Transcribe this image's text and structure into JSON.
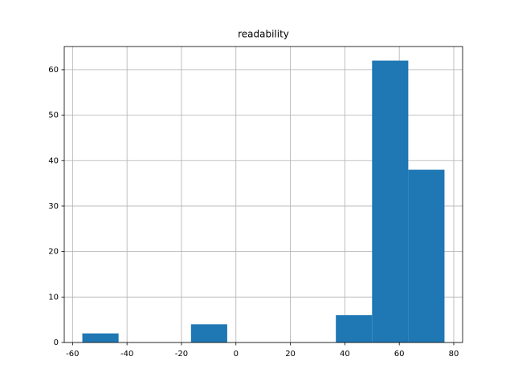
{
  "chart_data": {
    "type": "histogram",
    "title": "readability",
    "bins": [
      -56.4,
      -43.1,
      -29.8,
      -16.5,
      -3.2,
      10.1,
      23.4,
      36.7,
      50.0,
      63.3,
      76.6
    ],
    "values": [
      2,
      0,
      0,
      4,
      0,
      0,
      0,
      6,
      62,
      38
    ],
    "color": "#1f77b4",
    "xlim": [
      -63.05,
      83.25
    ],
    "xticks": [
      -60,
      -40,
      -20,
      0,
      20,
      40,
      60,
      80
    ],
    "ylim": [
      0,
      65.1
    ],
    "yticks": [
      0,
      10,
      20,
      30,
      40,
      50,
      60
    ],
    "grid": true
  }
}
